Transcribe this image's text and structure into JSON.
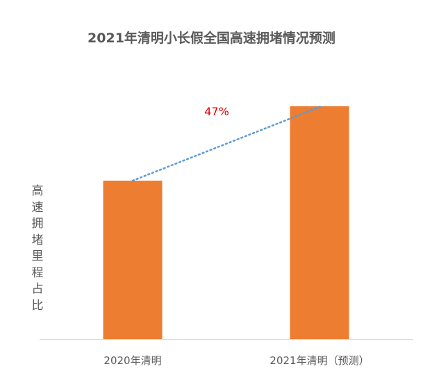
{
  "chart_data": {
    "type": "bar",
    "title": "2021年清明小长假全国高速拥堵情况预测",
    "ylabel": "高速拥堵里程占比",
    "xlabel": "",
    "categories": [
      "2020年清明",
      "2021年清明（预测）"
    ],
    "values": [
      1.0,
      1.47
    ],
    "ylim": [
      0,
      1.75
    ],
    "grid": false,
    "annotation": {
      "text": "47%",
      "color": "#e00000",
      "connector": "dotted line between bar tops",
      "connector_color": "#5b9bd5"
    },
    "colors": {
      "bar": "#ed7d31",
      "axis": "#d9d9d9",
      "text": "#595959"
    }
  }
}
